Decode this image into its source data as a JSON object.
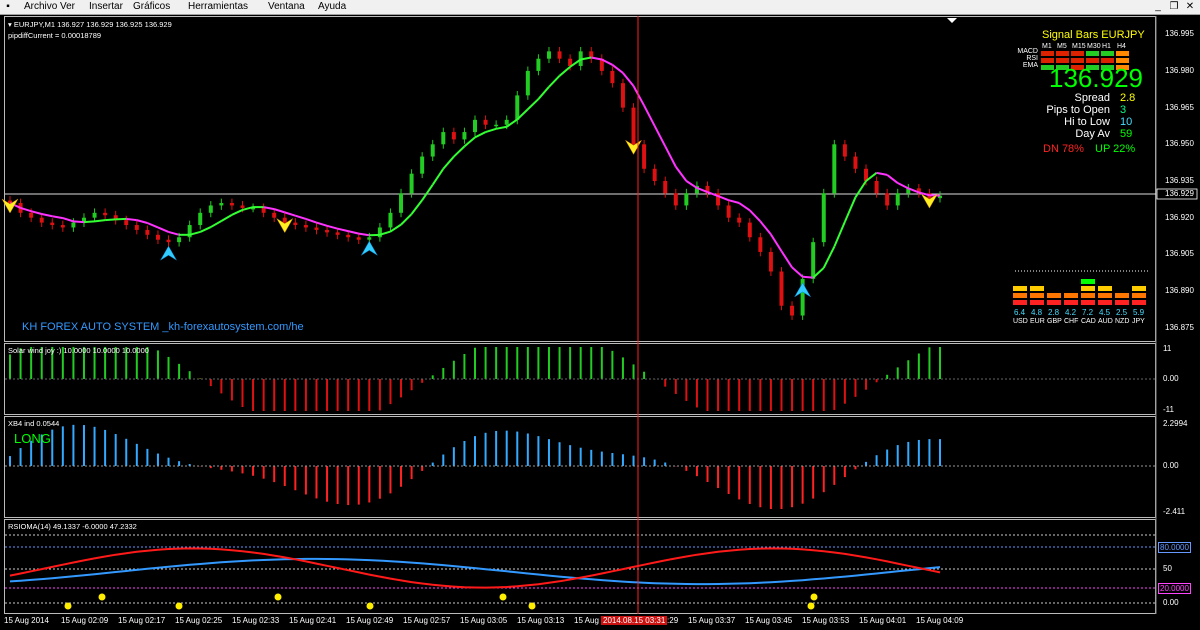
{
  "menu": [
    "Archivo",
    "Ver",
    "Insertar",
    "Gráficos",
    "Herramientas",
    "Ventana",
    "Ayuda"
  ],
  "window_controls": [
    "_",
    "❐",
    "✕"
  ],
  "main_chart": {
    "title": "EURJPY,M1  136.927 136.929 136.925 136.929",
    "subtitle": "pipdiffCurrent = 0.00018789",
    "watermark": "KH FOREX AUTO SYSTEM _kh-forexautosystem.com/he",
    "price_axis": [
      "136.995",
      "136.980",
      "136.965",
      "136.950",
      "136.935",
      "136.920",
      "136.905",
      "136.890",
      "136.875"
    ],
    "current_price_tag": "136.929"
  },
  "signal_panel": {
    "title": "Signal Bars EURJPY",
    "timeframes": [
      "M1",
      "M5",
      "M15",
      "M30",
      "H1",
      "H4"
    ],
    "rows": [
      {
        "label": "MACD",
        "colors": [
          "#dd2200",
          "#dd2200",
          "#dd2200",
          "#22cc22",
          "#22cc22",
          "#ff8800"
        ]
      },
      {
        "label": "RSI",
        "colors": [
          "#dd2200",
          "#dd2200",
          "#dd2200",
          "#dd2200",
          "#dd2200",
          "#ff8800"
        ]
      },
      {
        "label": "EMA",
        "colors": [
          "#22cc22",
          "#22cc22",
          "#dd2200",
          "#22cc22",
          "#22cc22",
          "#ff8800"
        ]
      }
    ],
    "price": "136.929",
    "stats": [
      {
        "label": "Spread",
        "value": "2.8",
        "color": "#ffff00"
      },
      {
        "label": "Pips to Open",
        "value": "3",
        "color": "#00ff88"
      },
      {
        "label": "Hi to Low",
        "value": "10",
        "color": "#44ddff"
      },
      {
        "label": "Day Av",
        "value": "59",
        "color": "#00ff00"
      }
    ],
    "dn": "DN 78%",
    "up": "UP 22%"
  },
  "currency_strength": {
    "currencies": [
      "USD",
      "EUR",
      "GBP",
      "CHF",
      "CAD",
      "AUD",
      "NZD",
      "JPY"
    ],
    "values": [
      "6.4",
      "4.8",
      "2.8",
      "4.2",
      "7.2",
      "4.5",
      "2.5",
      "5.9"
    ]
  },
  "solar_panel": {
    "title": "Solar wind joy :) 10.0000 10.0000 10.0000",
    "axis": [
      "11",
      "0.00",
      "-11"
    ]
  },
  "xb4_panel": {
    "title": "XB4 ind 0.0544",
    "status": "LONG",
    "axis": [
      "2.2994",
      "0.00",
      "-2.411"
    ]
  },
  "rsioma_panel": {
    "title": "RSIOMA(14) 49.1337 -6.0000 47.2332",
    "axis": [
      "80.0000",
      "50",
      "20.0000",
      "0.00"
    ]
  },
  "time_axis": [
    "15 Aug 2014",
    "15 Aug 02:09",
    "15 Aug 02:17",
    "15 Aug 02:25",
    "15 Aug 02:33",
    "15 Aug 02:41",
    "15 Aug 02:49",
    "15 Aug 02:57",
    "15 Aug 03:05",
    "15 Aug 03:13",
    "15 Aug 03:21",
    "15 Aug 03:29",
    "15 Aug 03:37",
    "15 Aug 03:45",
    "15 Aug 03:53",
    "15 Aug 04:01",
    "15 Aug 04:09"
  ],
  "crosshair_time": "2014.08.15 03:31",
  "colors": {
    "bull": "#22cc22",
    "bear": "#dd1111",
    "ma_up": "#33ff33",
    "ma_down": "#ff33ff",
    "rsi_red": "#ff1a1a",
    "rsi_blue": "#3399ff",
    "xb4_up": "#33aaff",
    "xb4_dn": "#ff2222",
    "crosshair": "#ff2222"
  },
  "chart_data": {
    "type": "line",
    "title": "EURJPY,M1",
    "ylim": [
      136.87,
      137.0
    ],
    "close": [
      136.926,
      136.922,
      136.92,
      136.918,
      136.917,
      136.916,
      136.918,
      136.92,
      136.922,
      136.921,
      136.919,
      136.917,
      136.915,
      136.913,
      136.911,
      136.91,
      136.912,
      136.917,
      136.922,
      136.925,
      136.926,
      136.925,
      136.924,
      136.924,
      136.922,
      136.92,
      136.918,
      136.917,
      136.916,
      136.915,
      136.914,
      136.913,
      136.912,
      136.911,
      136.912,
      136.916,
      136.922,
      136.93,
      136.938,
      136.945,
      136.95,
      136.955,
      136.952,
      136.955,
      136.96,
      136.958,
      136.958,
      136.96,
      136.97,
      136.98,
      136.985,
      136.988,
      136.985,
      136.982,
      136.988,
      136.985,
      136.98,
      136.975,
      136.965,
      136.95,
      136.94,
      136.935,
      136.93,
      136.925,
      136.93,
      136.933,
      136.93,
      136.925,
      136.92,
      136.918,
      136.912,
      136.906,
      136.898,
      136.884,
      136.88,
      136.895,
      136.91,
      136.93,
      136.95,
      136.945,
      136.94,
      136.935,
      136.93,
      136.925,
      136.93,
      136.932,
      136.93,
      136.928,
      136.929
    ]
  }
}
